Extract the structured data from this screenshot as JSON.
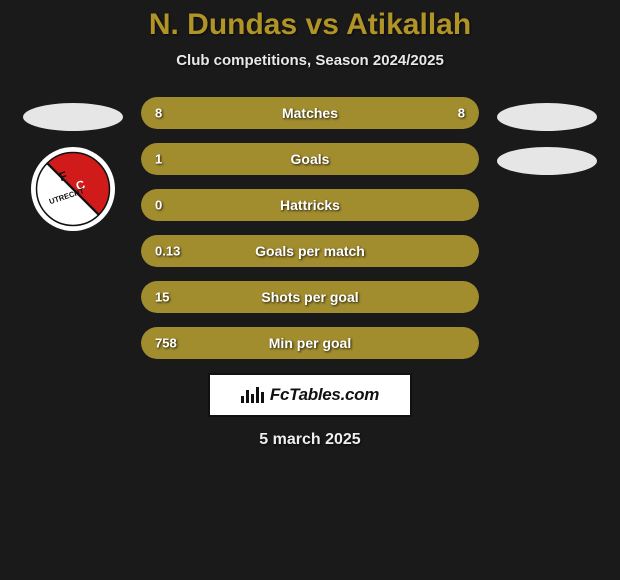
{
  "header": {
    "left_name": "N. Dundas",
    "vs": "vs",
    "right_name": "Atikallah",
    "subtitle": "Club competitions, Season 2024/2025",
    "title_color": "#b09426"
  },
  "left_side": {
    "club_badge": true
  },
  "stats": {
    "bar_bg": "#3a3a2a",
    "fill_color_left": "#a18c2e",
    "fill_color_right": "#a18c2e",
    "rows": [
      {
        "label": "Matches",
        "left": "8",
        "right": "8",
        "left_pct": 50,
        "right_pct": 50,
        "show_right": true
      },
      {
        "label": "Goals",
        "left": "1",
        "right": "",
        "left_pct": 100,
        "right_pct": 0,
        "show_right": false
      },
      {
        "label": "Hattricks",
        "left": "0",
        "right": "",
        "left_pct": 100,
        "right_pct": 0,
        "show_right": false
      },
      {
        "label": "Goals per match",
        "left": "0.13",
        "right": "",
        "left_pct": 100,
        "right_pct": 0,
        "show_right": false
      },
      {
        "label": "Shots per goal",
        "left": "15",
        "right": "",
        "left_pct": 100,
        "right_pct": 0,
        "show_right": false
      },
      {
        "label": "Min per goal",
        "left": "758",
        "right": "",
        "left_pct": 100,
        "right_pct": 0,
        "show_right": false
      }
    ]
  },
  "footer": {
    "brand_text": "FcTables.com",
    "date": "5 march 2025"
  },
  "colors": {
    "page_bg": "#1a1a1a",
    "text_light": "#e8e8e8",
    "bar_text": "#ffffff"
  }
}
